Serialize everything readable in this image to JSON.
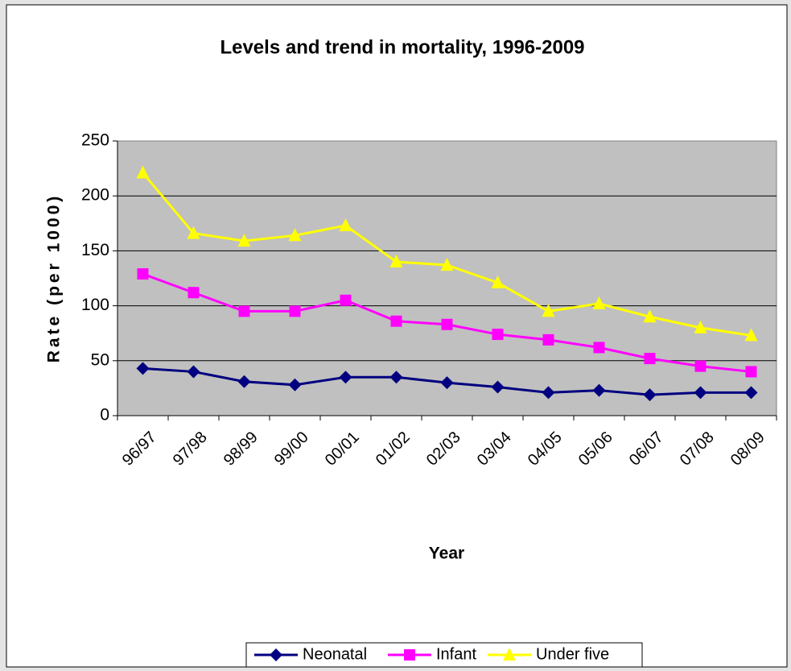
{
  "chart_data": {
    "type": "line",
    "title": "Levels and trend in mortality, 1996-2009",
    "x_label": "Year",
    "y_label": "Rate (per 1000)",
    "categories": [
      "96/97",
      "97/98",
      "98/99",
      "99/00",
      "00/01",
      "01/02",
      "02/03",
      "03/04",
      "04/05",
      "05/06",
      "06/07",
      "07/08",
      "08/09"
    ],
    "series": [
      {
        "name": "Neonatal",
        "color": "#000080",
        "marker": "diamond",
        "values": [
          43,
          40,
          31,
          28,
          35,
          35,
          30,
          26,
          21,
          23,
          19,
          21,
          21
        ]
      },
      {
        "name": "Infant",
        "color": "#ff00ff",
        "marker": "square",
        "values": [
          129,
          112,
          95,
          95,
          105,
          86,
          83,
          74,
          69,
          62,
          52,
          45,
          40
        ]
      },
      {
        "name": "Under five",
        "color": "#ffff00",
        "marker": "triangle",
        "values": [
          221,
          166,
          159,
          164,
          173,
          140,
          137,
          121,
          95,
          102,
          90,
          80,
          73
        ]
      }
    ],
    "ylim": [
      0,
      250
    ],
    "yticks": [
      0,
      50,
      100,
      150,
      200,
      250
    ],
    "grid": true,
    "legend": "bottom"
  }
}
